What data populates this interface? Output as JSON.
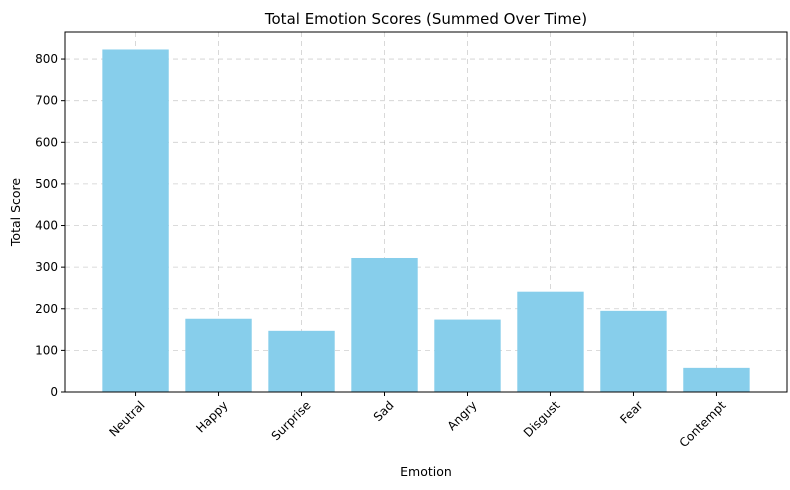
{
  "chart_data": {
    "type": "bar",
    "title": "Total Emotion Scores (Summed Over Time)",
    "xlabel": "Emotion",
    "ylabel": "Total Score",
    "categories": [
      "Neutral",
      "Happy",
      "Surprise",
      "Sad",
      "Angry",
      "Disgust",
      "Fear",
      "Contempt"
    ],
    "values": [
      823,
      176,
      147,
      322,
      174,
      241,
      195,
      58
    ],
    "ylim": [
      0,
      865
    ],
    "yticks": [
      "0",
      "100",
      "200",
      "300",
      "400",
      "500",
      "600",
      "700",
      "800"
    ],
    "bar_color": "#87ceeb",
    "grid": true,
    "x_tick_rotation_deg": 45
  }
}
